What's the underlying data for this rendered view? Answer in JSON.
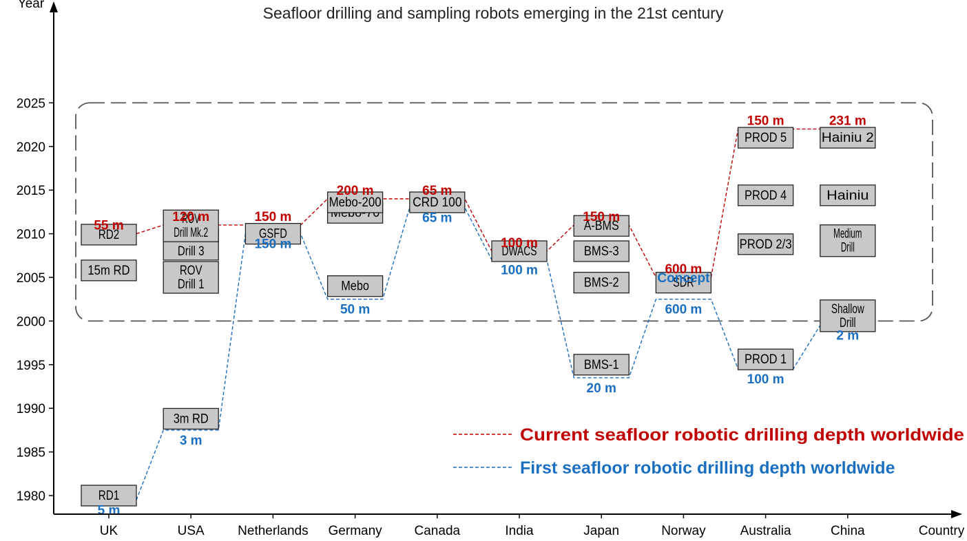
{
  "chart_data": {
    "type": "timeline",
    "title": "Seafloor drilling and sampling robots emerging in the 21st century",
    "ylabel": "Year",
    "xlabel": "Country",
    "yticks": [
      1980,
      1985,
      1990,
      1995,
      2000,
      2005,
      2010,
      2015,
      2020,
      2025
    ],
    "countries": [
      "UK",
      "USA",
      "Netherlands",
      "Germany",
      "Canada",
      "India",
      "Japan",
      "Norway",
      "Australia",
      "China"
    ],
    "era_highlight_years": [
      2000,
      2025
    ],
    "robots": [
      {
        "country": "UK",
        "name": "RD1",
        "year": 1980
      },
      {
        "country": "UK",
        "name": "15m RD",
        "year": 2005.8
      },
      {
        "country": "UK",
        "name": "RD2",
        "year": 2009.9
      },
      {
        "country": "USA",
        "name": "3m RD",
        "year": 1988.8
      },
      {
        "country": "USA",
        "name": "ROV Drill 1",
        "year": 2005
      },
      {
        "country": "USA",
        "name": "ROV Drill 3",
        "year": 2008.8
      },
      {
        "country": "USA",
        "name": "ROV Drill Mk.2",
        "year": 2010.9
      },
      {
        "country": "Netherlands",
        "name": "GSFD",
        "year": 2010
      },
      {
        "country": "Germany",
        "name": "Mebo",
        "year": 2004
      },
      {
        "country": "Germany",
        "name": "Mebo-70",
        "year": 2012.4
      },
      {
        "country": "Germany",
        "name": "Mebo-200",
        "year": 2013.6
      },
      {
        "country": "Canada",
        "name": "CRD 100",
        "year": 2013.6
      },
      {
        "country": "India",
        "name": "DWACS",
        "year": 2008
      },
      {
        "country": "Japan",
        "name": "BMS-1",
        "year": 1995
      },
      {
        "country": "Japan",
        "name": "BMS-2",
        "year": 2004.4
      },
      {
        "country": "Japan",
        "name": "BMS-3",
        "year": 2008
      },
      {
        "country": "Japan",
        "name": "A-BMS",
        "year": 2010.9
      },
      {
        "country": "Norway",
        "name": "SDR",
        "year": 2004.4
      },
      {
        "country": "Australia",
        "name": "PROD 1",
        "year": 1995.6
      },
      {
        "country": "Australia",
        "name": "PROD 2/3",
        "year": 2008.8
      },
      {
        "country": "Australia",
        "name": "PROD 4",
        "year": 2014.4
      },
      {
        "country": "Australia",
        "name": "PROD 5",
        "year": 2021
      },
      {
        "country": "China",
        "name": "Shallow Drill",
        "year": 2000.6
      },
      {
        "country": "China",
        "name": "Medium Drill",
        "year": 2009.2
      },
      {
        "country": "China",
        "name": "Hainiu",
        "year": 2014.4
      },
      {
        "country": "China",
        "name": "Hainiu 2",
        "year": 2021
      }
    ],
    "series": [
      {
        "name": "Current seafloor robotic drilling depth worldwide",
        "color": "#c00000",
        "points": [
          {
            "country": "UK",
            "year": 2010,
            "depth": "55 m"
          },
          {
            "country": "USA",
            "year": 2011,
            "depth": "120 m"
          },
          {
            "country": "Netherlands",
            "year": 2011,
            "depth": "150 m"
          },
          {
            "country": "Germany",
            "year": 2014,
            "depth": "200 m"
          },
          {
            "country": "Canada",
            "year": 2014,
            "depth": "65 m"
          },
          {
            "country": "India",
            "year": 2008,
            "depth": "100 m"
          },
          {
            "country": "Japan",
            "year": 2011,
            "depth": "150 m"
          },
          {
            "country": "Norway",
            "year": 2005,
            "depth": "600 m"
          },
          {
            "country": "Australia",
            "year": 2022,
            "depth": "150 m"
          },
          {
            "country": "China",
            "year": 2022,
            "depth": "231 m"
          }
        ]
      },
      {
        "name": "First seafloor robotic drilling depth worldwide",
        "color": "#1a6fc1",
        "points": [
          {
            "country": "UK",
            "year": 1979.5,
            "depth": "5 m"
          },
          {
            "country": "USA",
            "year": 1987.5,
            "depth": "3 m"
          },
          {
            "country": "Netherlands",
            "year": 2010,
            "depth": "150 m"
          },
          {
            "country": "Germany",
            "year": 2002.5,
            "depth": "50 m"
          },
          {
            "country": "Canada",
            "year": 2013,
            "depth": "65 m"
          },
          {
            "country": "India",
            "year": 2007,
            "depth": "100 m"
          },
          {
            "country": "Japan",
            "year": 1993.5,
            "depth": "20 m"
          },
          {
            "country": "Norway",
            "year": 2002.5,
            "depth": "600 m"
          },
          {
            "country": "Australia",
            "year": 1994.5,
            "depth": "100 m"
          },
          {
            "country": "China",
            "year": 1999.5,
            "depth": "2 m"
          }
        ]
      }
    ],
    "annotations": [
      {
        "country": "Norway",
        "text": "Concept",
        "color": "#1a6fc1"
      }
    ],
    "legend": "bottom-right"
  }
}
